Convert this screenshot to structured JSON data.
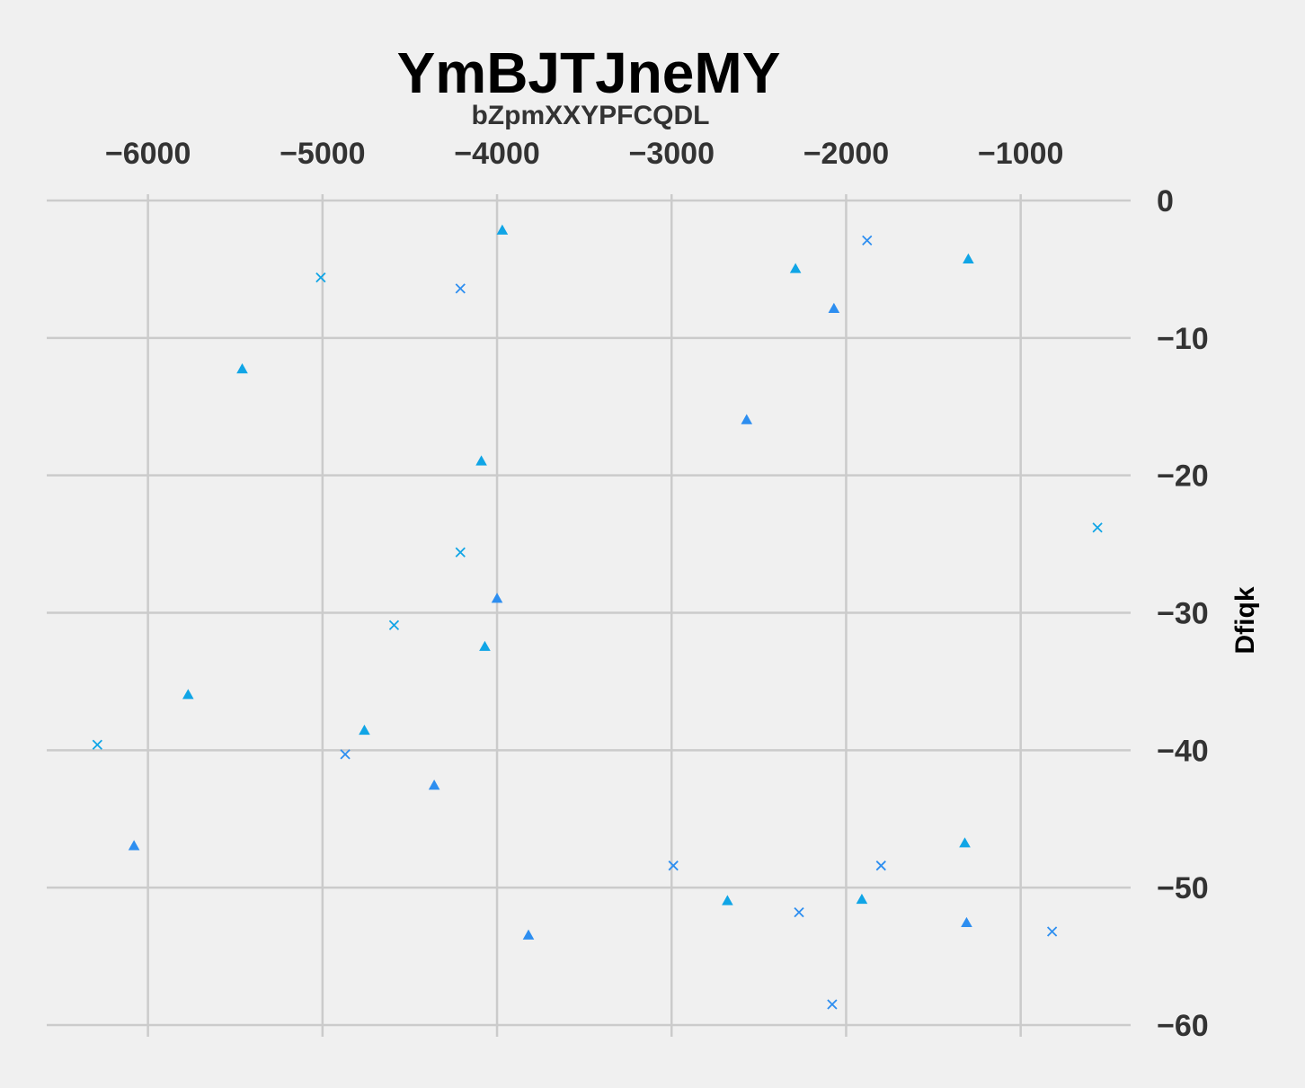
{
  "chart_data": {
    "type": "scatter",
    "title": "YmBJTJneMY",
    "subtitle": "bZpmXXYPFCQDL",
    "xlabel": "",
    "ylabel": "Dfiqk",
    "x_axis_position": "top",
    "y_axis_position": "right",
    "xlim": [
      -6580,
      -370
    ],
    "ylim": [
      -60.2,
      0.2
    ],
    "xticks": [
      -6000,
      -5000,
      -4000,
      -3000,
      -2000,
      -1000
    ],
    "xtick_labels": [
      "−6000",
      "−5000",
      "−4000",
      "−3000",
      "−2000",
      "−1000"
    ],
    "yticks": [
      0,
      -10,
      -20,
      -30,
      -40,
      -50,
      -60
    ],
    "ytick_labels": [
      "0",
      "−10",
      "−20",
      "−30",
      "−40",
      "−50",
      "−60"
    ],
    "grid": true,
    "series": [
      {
        "marker": "triangle",
        "color": "#10a5e6",
        "points": [
          [
            -3970,
            -2.2
          ],
          [
            -2290,
            -5.0
          ],
          [
            -1300,
            -4.3
          ],
          [
            -5460,
            -12.3
          ],
          [
            -4090,
            -19.0
          ],
          [
            -4070,
            -32.5
          ],
          [
            -5770,
            -36.0
          ],
          [
            -4760,
            -38.6
          ],
          [
            -1320,
            -46.8
          ],
          [
            -2680,
            -51.0
          ],
          [
            -1910,
            -50.9
          ]
        ]
      },
      {
        "marker": "triangle",
        "color": "#2d8ef0",
        "points": [
          [
            -2070,
            -7.9
          ],
          [
            -2570,
            -16.0
          ],
          [
            -4000,
            -29.0
          ],
          [
            -4360,
            -42.6
          ],
          [
            -6080,
            -47.0
          ],
          [
            -3820,
            -53.5
          ],
          [
            -1310,
            -52.6
          ]
        ]
      },
      {
        "marker": "x",
        "color": "#10a5e6",
        "points": [
          [
            -5010,
            -5.6
          ],
          [
            -4210,
            -25.6
          ],
          [
            -4590,
            -30.9
          ],
          [
            -6290,
            -39.6
          ],
          [
            -560,
            -23.8
          ]
        ]
      },
      {
        "marker": "x",
        "color": "#2d8ef0",
        "points": [
          [
            -1880,
            -2.9
          ],
          [
            -4210,
            -6.4
          ],
          [
            -4870,
            -40.3
          ],
          [
            -2990,
            -48.4
          ],
          [
            -1800,
            -48.4
          ],
          [
            -2270,
            -51.8
          ],
          [
            -2080,
            -58.5
          ],
          [
            -820,
            -53.2
          ]
        ]
      }
    ]
  }
}
